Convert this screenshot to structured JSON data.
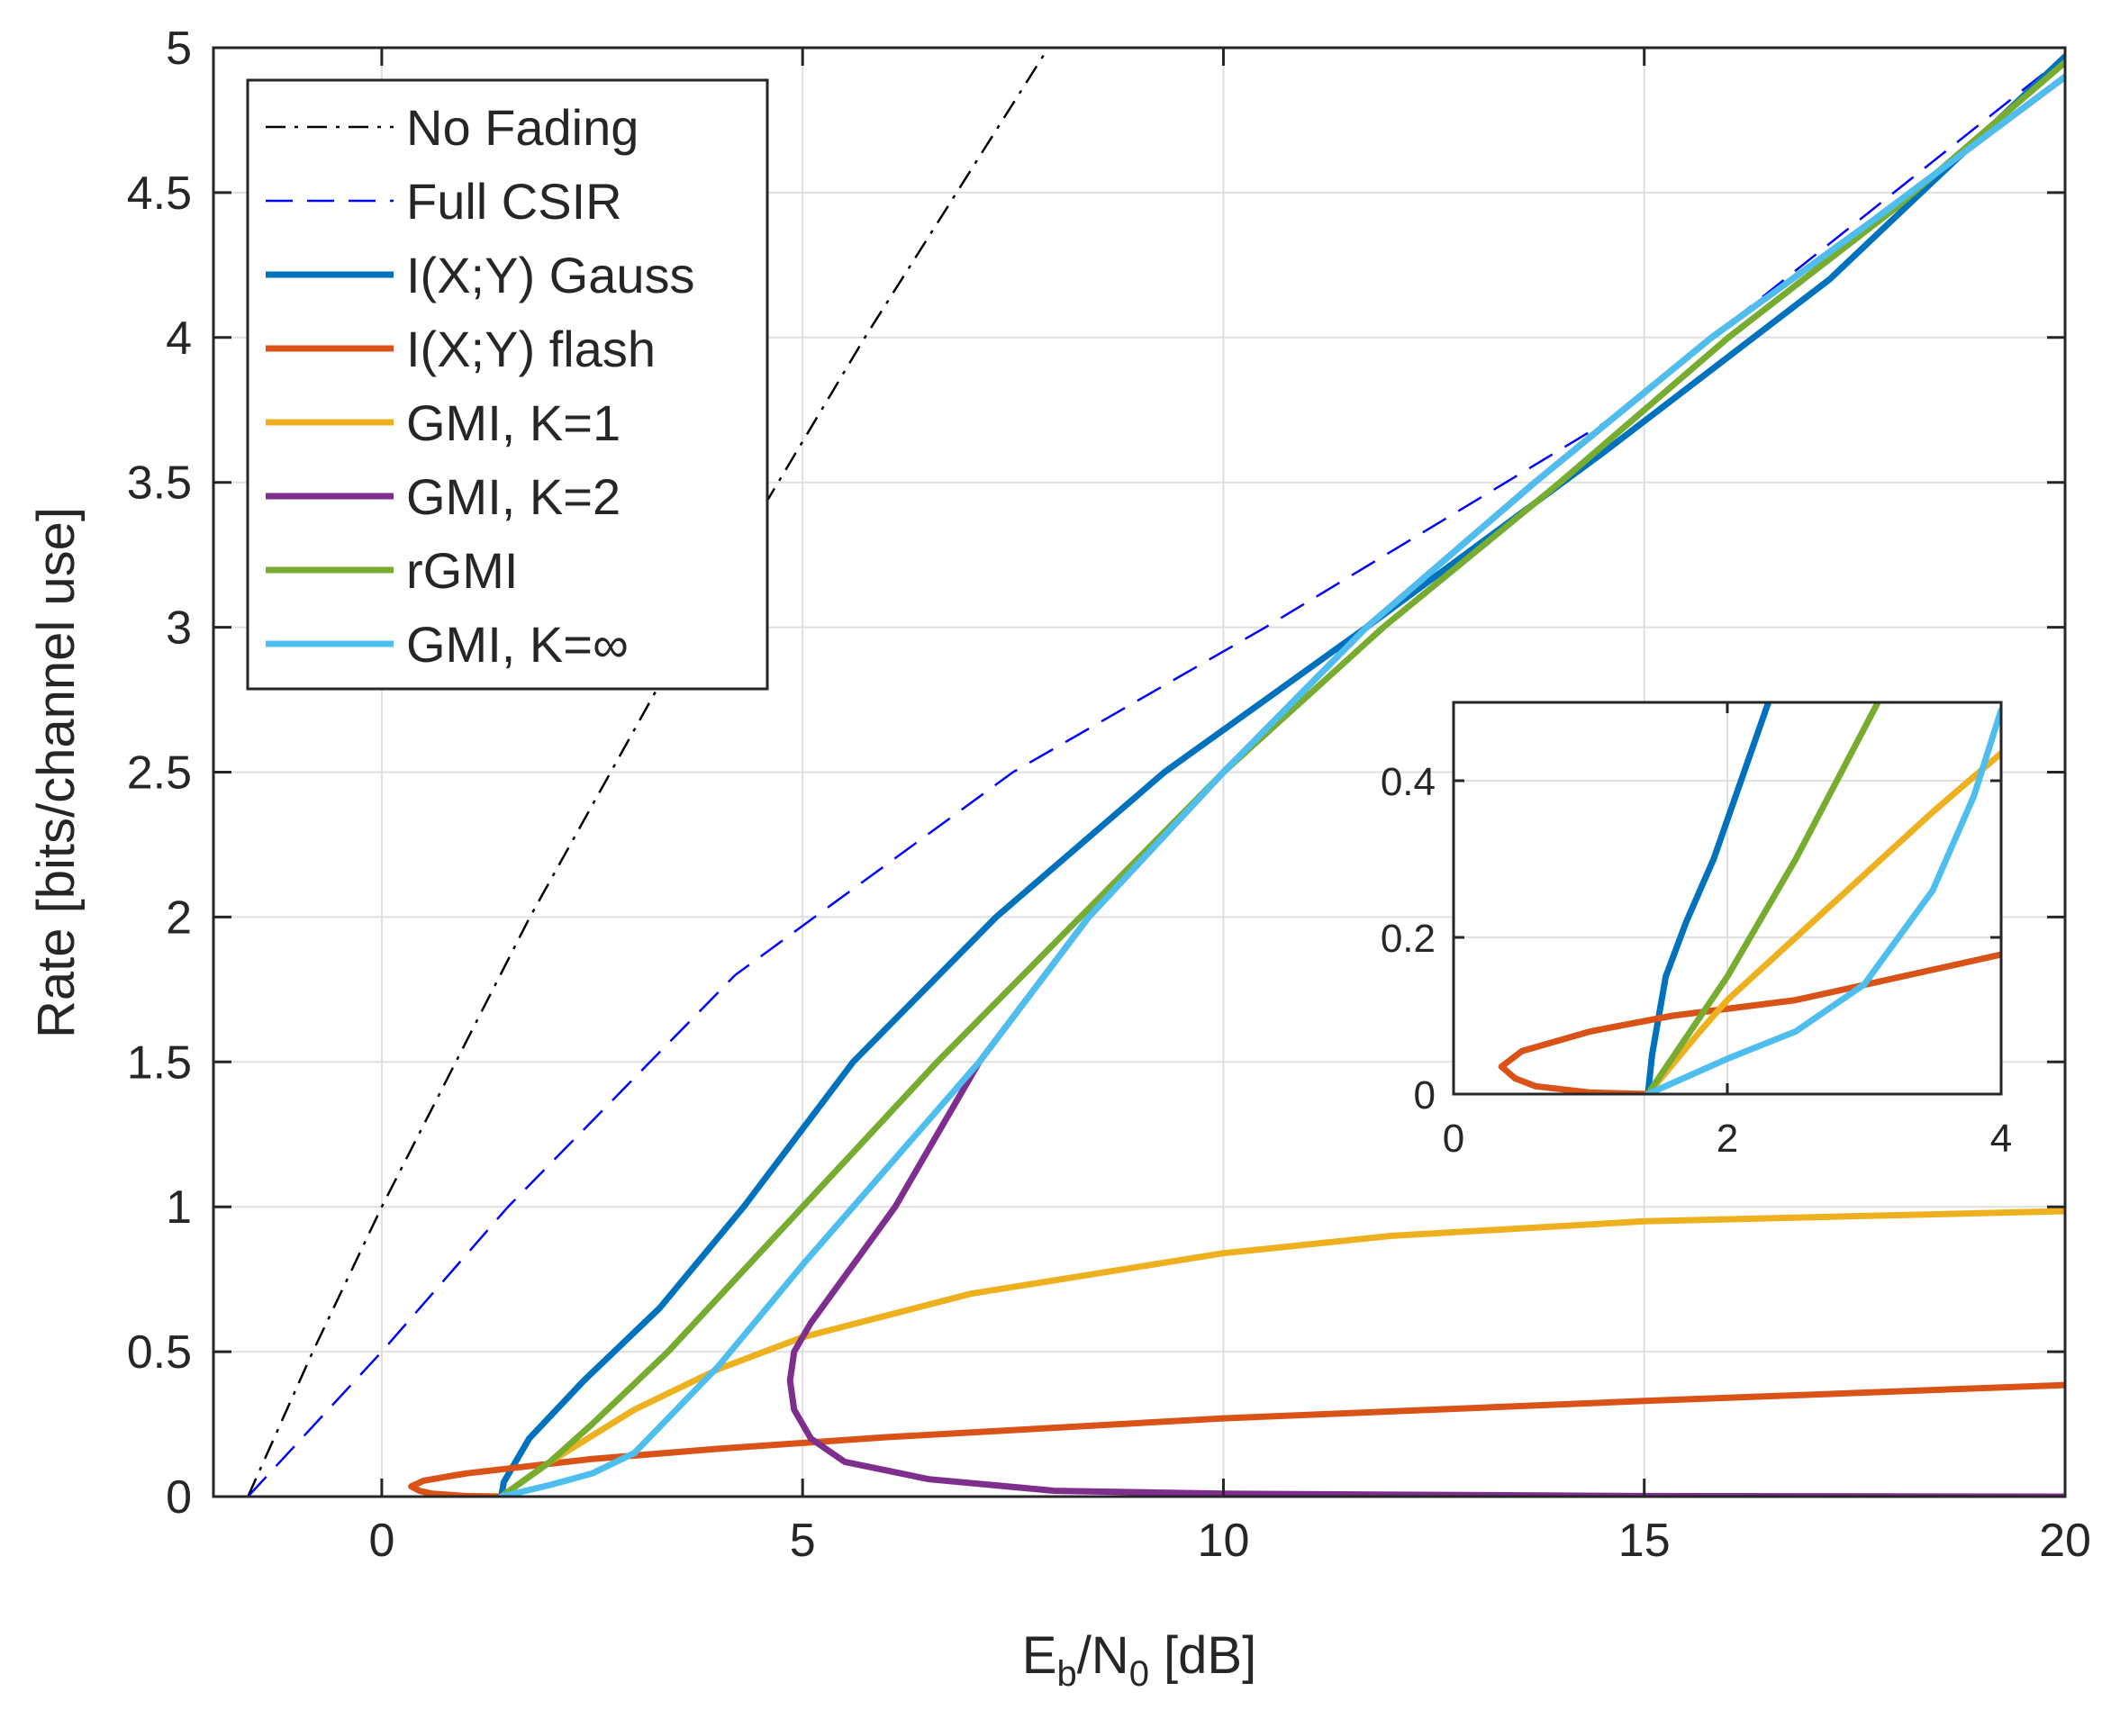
{
  "chart_data": {
    "type": "line",
    "xlabel": "E_b/N_0 [dB]",
    "xlabel_parts": {
      "base": "E",
      "sub1": "b",
      "mid": "/N",
      "sub2": "0",
      "tail": " [dB]"
    },
    "ylabel": "Rate [bits/channel use]",
    "xlim": [
      -2,
      20
    ],
    "ylim": [
      0,
      5
    ],
    "x_ticks": [
      0,
      5,
      10,
      15,
      20
    ],
    "y_ticks": [
      0,
      0.5,
      1,
      1.5,
      2,
      2.5,
      3,
      3.5,
      4,
      4.5,
      5
    ],
    "x_tick_labels": [
      "0",
      "5",
      "10",
      "15",
      "20"
    ],
    "y_tick_labels": [
      "0",
      "0.5",
      "1",
      "1.5",
      "2",
      "2.5",
      "3",
      "3.5",
      "4",
      "4.5",
      "5"
    ],
    "grid": true,
    "legend_position": "top-left",
    "series": [
      {
        "name": "No Fading",
        "color": "#000000",
        "style": "dashdot",
        "width": "thin",
        "points": [
          [
            -1.59,
            0
          ],
          [
            -0.82,
            0.5
          ],
          [
            0,
            1
          ],
          [
            1.76,
            2
          ],
          [
            3.68,
            3
          ],
          [
            5.74,
            4
          ],
          [
            7.92,
            5
          ]
        ]
      },
      {
        "name": "Full CSIR",
        "color": "#0000FF",
        "style": "dashed",
        "width": "thin",
        "points": [
          [
            -1.59,
            0
          ],
          [
            0,
            0.5
          ],
          [
            1.5,
            1
          ],
          [
            4.2,
            1.8
          ],
          [
            7.5,
            2.5
          ],
          [
            10.5,
            3
          ],
          [
            14.5,
            3.7
          ],
          [
            20,
            4.97
          ]
        ]
      },
      {
        "name": "I(X;Y) Gauss",
        "color": "#0072BD",
        "style": "solid",
        "width": "thick",
        "points": [
          [
            1.42,
            0
          ],
          [
            1.45,
            0.05
          ],
          [
            1.55,
            0.1
          ],
          [
            1.75,
            0.2
          ],
          [
            2.4,
            0.4
          ],
          [
            3.3,
            0.65
          ],
          [
            4.3,
            1
          ],
          [
            5.6,
            1.5
          ],
          [
            7.3,
            2
          ],
          [
            9.3,
            2.5
          ],
          [
            11.7,
            3
          ],
          [
            14.5,
            3.6
          ],
          [
            17.2,
            4.2
          ],
          [
            20,
            4.97
          ]
        ]
      },
      {
        "name": "I(X;Y) flash",
        "color": "#D95319",
        "style": "solid",
        "width": "thick",
        "points": [
          [
            1.42,
            0
          ],
          [
            1.0,
            0.002
          ],
          [
            0.6,
            0.01
          ],
          [
            0.45,
            0.02
          ],
          [
            0.35,
            0.035
          ],
          [
            0.5,
            0.055
          ],
          [
            1.0,
            0.08
          ],
          [
            1.6,
            0.1
          ],
          [
            2.5,
            0.13
          ],
          [
            4,
            0.165
          ],
          [
            6,
            0.205
          ],
          [
            10,
            0.27
          ],
          [
            15,
            0.33
          ],
          [
            20,
            0.385
          ]
        ]
      },
      {
        "name": "GMI, K=1",
        "color": "#EDB120",
        "style": "solid",
        "width": "thick",
        "points": [
          [
            1.42,
            0
          ],
          [
            2,
            0.12
          ],
          [
            3,
            0.3
          ],
          [
            4,
            0.44
          ],
          [
            5,
            0.55
          ],
          [
            7,
            0.7
          ],
          [
            10,
            0.84
          ],
          [
            12,
            0.9
          ],
          [
            15,
            0.95
          ],
          [
            20,
            0.985
          ]
        ]
      },
      {
        "name": "GMI, K=2",
        "color": "#7E2F8E",
        "style": "solid",
        "width": "thick",
        "points": [
          [
            20,
            0
          ],
          [
            15,
            0.002
          ],
          [
            10,
            0.01
          ],
          [
            8,
            0.02
          ],
          [
            6.5,
            0.06
          ],
          [
            5.5,
            0.12
          ],
          [
            5.1,
            0.2
          ],
          [
            4.9,
            0.3
          ],
          [
            4.85,
            0.4
          ],
          [
            4.9,
            0.5
          ],
          [
            5.1,
            0.6
          ],
          [
            5.6,
            0.8
          ],
          [
            6.1,
            1
          ],
          [
            7.1,
            1.5
          ],
          [
            8.4,
            2
          ],
          [
            10,
            2.5
          ],
          [
            11.7,
            3
          ],
          [
            13.7,
            3.5
          ],
          [
            15.8,
            4
          ],
          [
            17.7,
            4.4
          ],
          [
            20,
            4.9
          ]
        ]
      },
      {
        "name": "rGMI",
        "color": "#77AC30",
        "style": "solid",
        "width": "thick",
        "points": [
          [
            1.42,
            0
          ],
          [
            2,
            0.12
          ],
          [
            2.5,
            0.25
          ],
          [
            3.4,
            0.5
          ],
          [
            5,
            1
          ],
          [
            6.6,
            1.5
          ],
          [
            8.3,
            2
          ],
          [
            10,
            2.5
          ],
          [
            11.9,
            3
          ],
          [
            14,
            3.5
          ],
          [
            16,
            4
          ],
          [
            18,
            4.45
          ],
          [
            20,
            4.95
          ]
        ]
      },
      {
        "name": "GMI, K=∞",
        "color": "#4DBEEE",
        "style": "solid",
        "width": "thick",
        "points": [
          [
            1.42,
            0
          ],
          [
            2,
            0.04
          ],
          [
            2.5,
            0.08
          ],
          [
            3,
            0.15
          ],
          [
            3.5,
            0.3
          ],
          [
            4,
            0.45
          ],
          [
            5,
            0.8
          ],
          [
            5.6,
            1
          ],
          [
            7.1,
            1.5
          ],
          [
            8.4,
            2
          ],
          [
            10,
            2.5
          ],
          [
            11.7,
            3
          ],
          [
            13.7,
            3.5
          ],
          [
            15.8,
            4
          ],
          [
            17.7,
            4.4
          ],
          [
            20,
            4.9
          ]
        ]
      }
    ],
    "inset": {
      "xlim": [
        0,
        4
      ],
      "ylim": [
        0,
        0.5
      ],
      "x_ticks": [
        0,
        2,
        4
      ],
      "y_ticks": [
        0,
        0.2,
        0.4
      ],
      "x_tick_labels": [
        "0",
        "2",
        "4"
      ],
      "y_tick_labels": [
        "0",
        "0.2",
        "0.4"
      ],
      "series": [
        {
          "name": "I(X;Y) Gauss",
          "color": "#0072BD",
          "points": [
            [
              1.42,
              0
            ],
            [
              1.45,
              0.05
            ],
            [
              1.5,
              0.1
            ],
            [
              1.55,
              0.15
            ],
            [
              1.7,
              0.22
            ],
            [
              1.9,
              0.3
            ],
            [
              2.1,
              0.4
            ],
            [
              2.3,
              0.5
            ]
          ]
        },
        {
          "name": "I(X;Y) flash",
          "color": "#D95319",
          "points": [
            [
              1.42,
              0
            ],
            [
              1.0,
              0.002
            ],
            [
              0.6,
              0.01
            ],
            [
              0.45,
              0.02
            ],
            [
              0.35,
              0.035
            ],
            [
              0.5,
              0.055
            ],
            [
              0.8,
              0.07
            ],
            [
              1.0,
              0.08
            ],
            [
              1.6,
              0.1
            ],
            [
              2.5,
              0.12
            ],
            [
              4,
              0.178
            ]
          ]
        },
        {
          "name": "GMI, K=1",
          "color": "#EDB120",
          "points": [
            [
              1.42,
              0
            ],
            [
              1.8,
              0.08
            ],
            [
              2,
              0.12
            ],
            [
              2.5,
              0.2
            ],
            [
              3,
              0.28
            ],
            [
              3.5,
              0.36
            ],
            [
              4,
              0.435
            ]
          ]
        },
        {
          "name": "rGMI",
          "color": "#77AC30",
          "points": [
            [
              1.42,
              0
            ],
            [
              2,
              0.15
            ],
            [
              2.5,
              0.3
            ],
            [
              3.1,
              0.5
            ]
          ]
        },
        {
          "name": "GMI, K=∞",
          "color": "#4DBEEE",
          "points": [
            [
              1.42,
              0
            ],
            [
              2,
              0.045
            ],
            [
              2.5,
              0.08
            ],
            [
              3,
              0.14
            ],
            [
              3.5,
              0.26
            ],
            [
              3.8,
              0.38
            ],
            [
              4,
              0.49
            ]
          ]
        }
      ]
    }
  }
}
